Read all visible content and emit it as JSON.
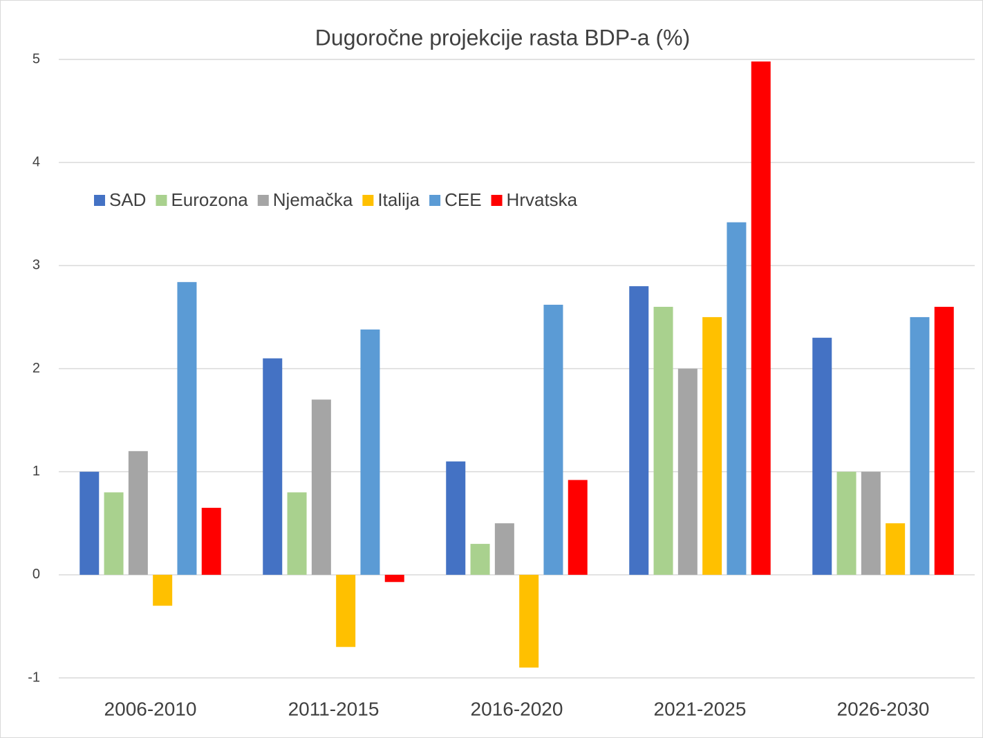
{
  "chart_data": {
    "type": "bar",
    "title": "Dugoročne projekcije rasta BDP-a (%)",
    "categories": [
      "2006-2010",
      "2011-2015",
      "2016-2020",
      "2021-2025",
      "2026-2030"
    ],
    "series": [
      {
        "name": "SAD",
        "color": "#4472c4",
        "values": [
          1.0,
          2.1,
          1.1,
          2.8,
          2.3
        ]
      },
      {
        "name": "Eurozona",
        "color": "#a9d18e",
        "values": [
          0.8,
          0.8,
          0.3,
          2.6,
          1.0
        ]
      },
      {
        "name": "Njemačka",
        "color": "#a5a5a5",
        "values": [
          1.2,
          1.7,
          0.5,
          2.0,
          1.0
        ]
      },
      {
        "name": "Italija",
        "color": "#ffc000",
        "values": [
          -0.3,
          -0.7,
          -0.9,
          2.5,
          0.5
        ]
      },
      {
        "name": "CEE",
        "color": "#5b9bd5",
        "values": [
          2.84,
          2.38,
          2.62,
          3.42,
          2.5
        ]
      },
      {
        "name": "Hrvatska",
        "color": "#ff0000",
        "values": [
          0.65,
          -0.07,
          0.92,
          4.98,
          2.6
        ]
      }
    ],
    "ylim": [
      -1,
      5
    ],
    "yticks": [
      -1,
      0,
      1,
      2,
      3,
      4,
      5
    ],
    "grid": true,
    "legend": "top-left"
  }
}
